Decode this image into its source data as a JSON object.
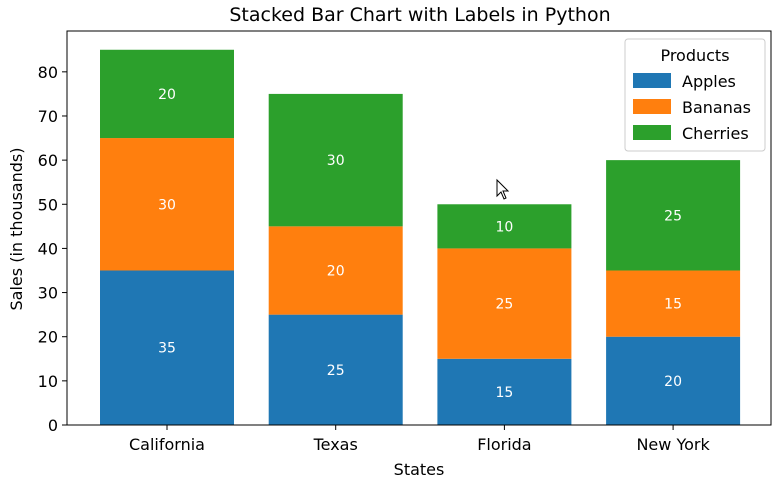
{
  "chart_data": {
    "type": "bar",
    "stacked": true,
    "title": "Stacked Bar Chart with Labels in Python",
    "xlabel": "States",
    "ylabel": "Sales (in thousands)",
    "categories": [
      "California",
      "Texas",
      "Florida",
      "New York"
    ],
    "series": [
      {
        "name": "Apples",
        "values": [
          35,
          25,
          15,
          20
        ],
        "color": "#1f77b4"
      },
      {
        "name": "Bananas",
        "values": [
          30,
          20,
          25,
          15
        ],
        "color": "#ff7f0e"
      },
      {
        "name": "Cherries",
        "values": [
          20,
          30,
          10,
          25
        ],
        "color": "#2ca02c"
      }
    ],
    "ylim": [
      0,
      89.25
    ],
    "yticks": [
      0,
      10,
      20,
      30,
      40,
      50,
      60,
      70,
      80
    ],
    "legend": {
      "title": "Products",
      "placement": "top-right"
    },
    "grid": false
  }
}
